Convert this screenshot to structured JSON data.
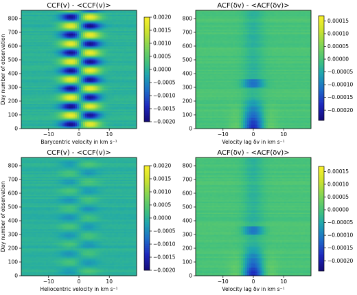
{
  "figure": {
    "colormap": "viridis-like (dark blue → green → yellow)",
    "panels_layout": "2x2"
  },
  "chart_data": [
    {
      "type": "heatmap",
      "title": "CCF(v) - <CCF(v)>",
      "xlabel": "Barycentric velocity in km s⁻¹",
      "ylabel": "Day number of observation",
      "xlim": [
        -19,
        19
      ],
      "ylim": [
        0,
        860
      ],
      "xticks": [
        -10,
        0,
        10
      ],
      "xtick_labels": [
        "−10",
        "0",
        "10"
      ],
      "yticks": [
        0,
        100,
        200,
        300,
        400,
        500,
        600,
        700,
        800
      ],
      "ytick_labels": [
        "0",
        "100",
        "200",
        "300",
        "400",
        "500",
        "600",
        "700",
        "800"
      ],
      "colorbar": {
        "range": [
          -0.002,
          0.002
        ],
        "ticks": [
          0.002,
          0.0015,
          0.001,
          0.0005,
          0.0,
          -0.0005,
          -0.001,
          -0.0015,
          -0.002
        ],
        "tick_labels": [
          "0.0020",
          "0.0015",
          "0.0010",
          "0.0005",
          "0.0000",
          "−0.0005",
          "−0.0010",
          "−0.0015",
          "−0.0020"
        ]
      },
      "pattern": "antisymmetric oscillation about 0 km/s, period ~130 days, amplitude ~0.002",
      "pattern_params": {
        "kind": "ccf",
        "period_days": 130,
        "amplitude": 0.0019,
        "center_kms": 0.5,
        "lobe_offset_kms": 3
      }
    },
    {
      "type": "heatmap",
      "title": "ACF(δv) - <ACF(δv)>",
      "xlabel": "Velocity lag δv in km s⁻¹",
      "ylabel": "",
      "xlim": [
        -19,
        19
      ],
      "ylim": [
        0,
        860
      ],
      "xticks": [
        -10,
        0,
        10
      ],
      "xtick_labels": [
        "−10",
        "0",
        "10"
      ],
      "yticks": [
        0,
        100,
        200,
        300,
        400,
        500,
        600,
        700,
        800
      ],
      "ytick_labels": [
        "0",
        "100",
        "200",
        "300",
        "400",
        "500",
        "600",
        "700",
        "800"
      ],
      "colorbar": {
        "range": [
          -0.00024,
          0.00017
        ],
        "ticks": [
          0.00015,
          0.0001,
          5e-05,
          0.0,
          -5e-05,
          -0.0001,
          -0.00015,
          -0.0002
        ],
        "tick_labels": [
          "0.00015",
          "0.00010",
          "0.00005",
          "0.00000",
          "−0.00005",
          "−0.00010",
          "−0.00015",
          "−0.00020"
        ]
      },
      "pattern": "symmetric about 0 lag, strong negative dip near 0 lag for days 0–200",
      "pattern_params": {
        "kind": "acf"
      }
    },
    {
      "type": "heatmap",
      "title": "CCF(v) - <CCF(v)>",
      "xlabel": "Heliocentric velocity in km s⁻¹",
      "ylabel": "Day number of observation",
      "xlim": [
        -19,
        19
      ],
      "ylim": [
        0,
        860
      ],
      "xticks": [
        -10,
        0,
        10
      ],
      "xtick_labels": [
        "−10",
        "0",
        "10"
      ],
      "yticks": [
        0,
        100,
        200,
        300,
        400,
        500,
        600,
        700,
        800
      ],
      "ytick_labels": [
        "0",
        "100",
        "200",
        "300",
        "400",
        "500",
        "600",
        "700",
        "800"
      ],
      "colorbar": {
        "range": [
          -0.002,
          0.002
        ],
        "ticks": [
          0.002,
          0.0015,
          0.001,
          0.0005,
          0.0,
          -0.0005,
          -0.001,
          -0.0015,
          -0.002
        ],
        "tick_labels": [
          "0.0020",
          "0.0015",
          "0.0010",
          "0.0005",
          "0.0000",
          "−0.0005",
          "−0.0010",
          "−0.0015",
          "−0.0020"
        ]
      },
      "pattern": "weak, mostly noise-like residual near 0",
      "pattern_params": {
        "kind": "ccf_weak",
        "period_days": 130,
        "amplitude": 0.00035,
        "center_kms": 0.0,
        "lobe_offset_kms": 3
      }
    },
    {
      "type": "heatmap",
      "title": "ACF(δv) - <ACF(δv)>",
      "xlabel": "Velocity lag δv in km s⁻¹",
      "ylabel": "",
      "xlim": [
        -19,
        19
      ],
      "ylim": [
        0,
        860
      ],
      "xticks": [
        -10,
        0,
        10
      ],
      "xtick_labels": [
        "−10",
        "0",
        "10"
      ],
      "yticks": [
        0,
        100,
        200,
        300,
        400,
        500,
        600,
        700,
        800
      ],
      "ytick_labels": [
        "0",
        "100",
        "200",
        "300",
        "400",
        "500",
        "600",
        "700",
        "800"
      ],
      "colorbar": {
        "range": [
          -0.00024,
          0.00017
        ],
        "ticks": [
          0.00015,
          0.0001,
          5e-05,
          0.0,
          -5e-05,
          -0.0001,
          -0.00015,
          -0.0002
        ],
        "tick_labels": [
          "0.00015",
          "0.00010",
          "0.00005",
          "0.00000",
          "−0.00005",
          "−0.00010",
          "−0.00015",
          "−0.00020"
        ]
      },
      "pattern": "symmetric about 0 lag, strong negative dip near 0 lag for days 0–200",
      "pattern_params": {
        "kind": "acf"
      }
    }
  ]
}
